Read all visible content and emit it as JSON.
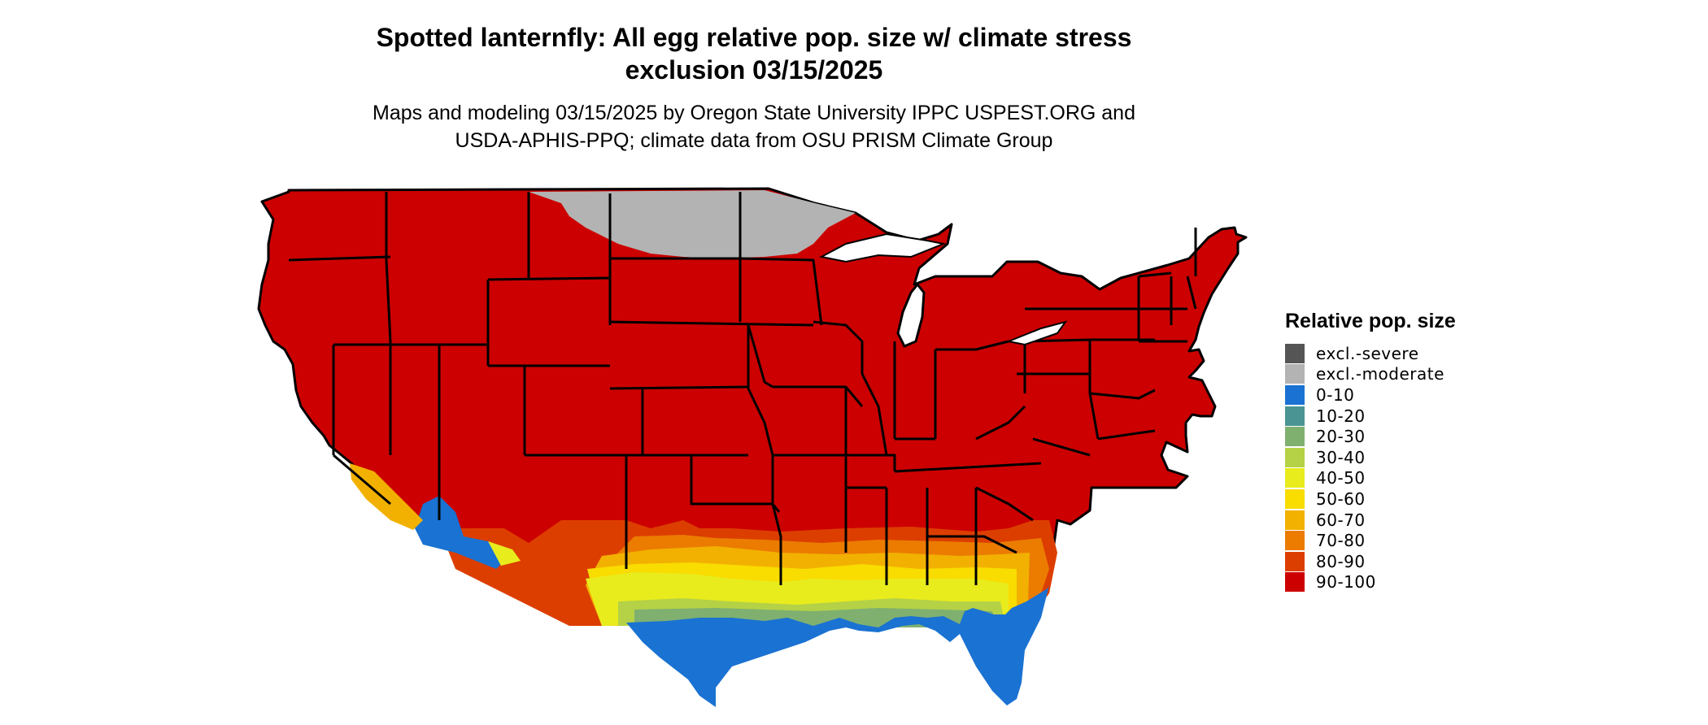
{
  "title": {
    "line1": "Spotted lanternfly: All egg relative pop. size w/ climate stress",
    "line2": "exclusion 03/15/2025"
  },
  "subtitle": {
    "line1": "Maps and modeling 03/15/2025 by Oregon State University IPPC USPEST.ORG and",
    "line2": "USDA-APHIS-PPQ; climate data from OSU PRISM Climate Group"
  },
  "legend": {
    "title": "Relative pop. size",
    "items": [
      {
        "label": "excl.-severe",
        "color": "#555555"
      },
      {
        "label": "excl.-moderate",
        "color": "#b3b3b3"
      },
      {
        "label": "0-10",
        "color": "#1a72d2"
      },
      {
        "label": "10-20",
        "color": "#4a9593"
      },
      {
        "label": "20-30",
        "color": "#7fb070"
      },
      {
        "label": "30-40",
        "color": "#b5d146"
      },
      {
        "label": "40-50",
        "color": "#e8ec1d"
      },
      {
        "label": "50-60",
        "color": "#f9dc00"
      },
      {
        "label": "60-70",
        "color": "#f2b100"
      },
      {
        "label": "70-80",
        "color": "#eb7c00"
      },
      {
        "label": "80-90",
        "color": "#dc3e00"
      },
      {
        "label": "90-100",
        "color": "#cc0000"
      }
    ]
  },
  "map": {
    "region": "Contiguous United States",
    "zones": [
      {
        "name": "excl.-moderate",
        "color": "#b3b3b3",
        "where": "northern Minnesota, northern Wisconsin, northern North Dakota"
      },
      {
        "name": "90-100",
        "color": "#cc0000",
        "where": "most of the contiguous United States"
      },
      {
        "name": "40-50 to 80-90",
        "color": "#e8ec1d",
        "where": "Gulf Coast states band, southern Arizona and California"
      },
      {
        "name": "0-10",
        "color": "#1a72d2",
        "where": "Florida peninsula, coastal Texas and Louisiana, southwest Arizona, southeast California"
      }
    ]
  }
}
